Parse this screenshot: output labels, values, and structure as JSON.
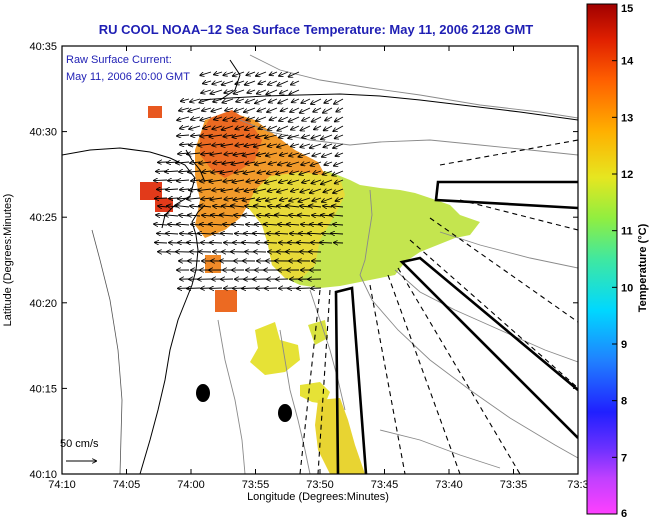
{
  "title": "RU COOL  NOAA–12  Sea Surface Temperature:  May 11, 2006 2128 GMT",
  "annotation": {
    "line1": "Raw Surface Current:",
    "line2": "May 11, 2006 20:00 GMT"
  },
  "scale_label": "50 cm/s",
  "axes": {
    "xlabel": "Longitude (Degrees:Minutes)",
    "ylabel": "Latitude (Degrees:Minutes)",
    "x_ticks": [
      "74:10",
      "74:05",
      "74:00",
      "73:55",
      "73:50",
      "73:45",
      "73:40",
      "73:35",
      "73:3"
    ],
    "y_ticks": [
      "40:35",
      "40:30",
      "40:25",
      "40:20",
      "40:15",
      "40:10"
    ]
  },
  "colorbar": {
    "label": "Temperature (°C)",
    "ticks": [
      "15",
      "14",
      "13",
      "12",
      "11",
      "10",
      "9",
      "8",
      "7",
      "6"
    ],
    "range": [
      6,
      15
    ],
    "colormap": [
      "#ff40ff",
      "#9b30ff",
      "#2020ff",
      "#2080ff",
      "#00d0ff",
      "#30e0a0",
      "#90ee40",
      "#e6e620",
      "#ffb000",
      "#ff6000",
      "#e02000",
      "#a00000"
    ]
  },
  "colors": {
    "title": "#1f1fb4",
    "sst_warm": "#f07020",
    "sst_mid": "#e9d83a",
    "sst_cool": "#bde65a"
  }
}
